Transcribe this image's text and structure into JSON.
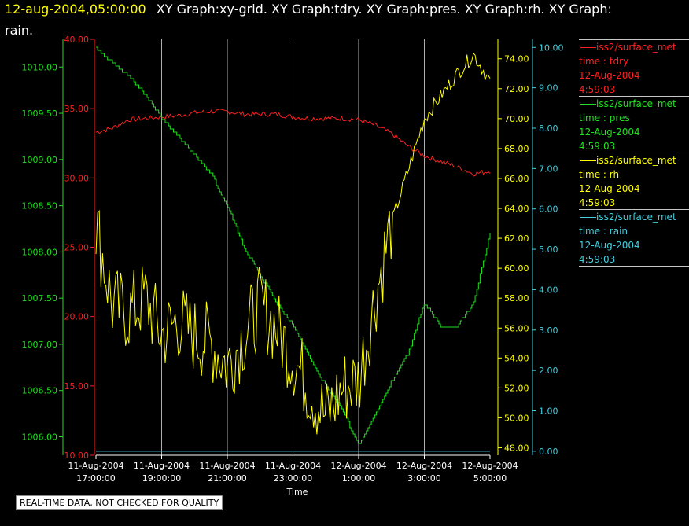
{
  "header": {
    "date": "12-aug-2004,05:00:00",
    "graphs_line1": "XY Graph:xy-grid.  XY Graph:tdry.  XY Graph:pres.  XY Graph:rh.  XY Graph:",
    "graphs_line2": "rain."
  },
  "legend": [
    {
      "source": "iss2/surface_met",
      "field": "time : tdry",
      "date": "12-Aug-2004",
      "time": "4:59:03",
      "color": "#ff2020"
    },
    {
      "source": "iss2/surface_met",
      "field": "time : pres",
      "date": "12-Aug-2004",
      "time": "4:59:03",
      "color": "#20e020"
    },
    {
      "source": "iss2/surface_met",
      "field": "time : rh",
      "date": "12-Aug-2004",
      "time": "4:59:03",
      "color": "#ffff00"
    },
    {
      "source": "iss2/surface_met",
      "field": "time : rain",
      "date": "12-Aug-2004",
      "time": "4:59:03",
      "color": "#40d0e0"
    }
  ],
  "quality_note": "REAL-TIME DATA, NOT CHECKED FOR QUALITY",
  "chart_data": {
    "type": "line",
    "xlabel": "Time",
    "x_range_hours": [
      17,
      29
    ],
    "x_ticks": [
      {
        "date": "11-Aug-2004",
        "time": "17:00:00",
        "h": 17
      },
      {
        "date": "11-Aug-2004",
        "time": "19:00:00",
        "h": 19
      },
      {
        "date": "11-Aug-2004",
        "time": "21:00:00",
        "h": 21
      },
      {
        "date": "11-Aug-2004",
        "time": "23:00:00",
        "h": 23
      },
      {
        "date": "12-Aug-2004",
        "time": "1:00:00",
        "h": 25
      },
      {
        "date": "12-Aug-2004",
        "time": "3:00:00",
        "h": 27
      },
      {
        "date": "12-Aug-2004",
        "time": "5:00:00",
        "h": 29
      }
    ],
    "grid": true,
    "axes": {
      "tdry": {
        "color": "#ff2020",
        "range": [
          10,
          40
        ],
        "ticks": [
          "10.00",
          "15.00",
          "20.00",
          "25.00",
          "30.00",
          "35.00",
          "40.00"
        ],
        "side": "left"
      },
      "pres": {
        "color": "#20e020",
        "range": [
          1005.8,
          1010.3
        ],
        "ticks": [
          "1006.00",
          "1006.50",
          "1007.00",
          "1007.50",
          "1008.00",
          "1008.50",
          "1009.00",
          "1009.50",
          "1010.00"
        ],
        "side": "left"
      },
      "rh": {
        "color": "#ffff00",
        "range": [
          47.5,
          75.3
        ],
        "ticks": [
          "48.00",
          "50.00",
          "52.00",
          "54.00",
          "56.00",
          "58.00",
          "60.00",
          "62.00",
          "64.00",
          "66.00",
          "68.00",
          "70.00",
          "72.00",
          "74.00"
        ],
        "side": "right"
      },
      "rain": {
        "color": "#40d0e0",
        "range": [
          -0.1,
          10.2
        ],
        "ticks": [
          "0.00",
          "1.00",
          "2.00",
          "3.00",
          "4.00",
          "5.00",
          "6.00",
          "7.00",
          "8.00",
          "9.00",
          "10.00"
        ],
        "side": "right"
      }
    },
    "series": [
      {
        "name": "tdry",
        "axis": "tdry",
        "x": [
          17,
          17.5,
          18,
          18.5,
          19,
          19.5,
          20,
          20.5,
          21,
          21.5,
          22,
          22.5,
          23,
          23.5,
          24,
          24.5,
          25,
          25.5,
          26,
          26.5,
          27,
          27.5,
          28,
          28.5,
          29
        ],
        "y": [
          33.3,
          33.6,
          34.2,
          34.3,
          34.4,
          34.5,
          34.7,
          34.8,
          34.8,
          34.6,
          34.6,
          34.6,
          34.4,
          34.3,
          34.3,
          34.3,
          34.2,
          33.8,
          33.2,
          32.3,
          31.6,
          31.2,
          30.8,
          30.3,
          30.5
        ]
      },
      {
        "name": "pres",
        "axis": "pres",
        "x": [
          17,
          17.5,
          18,
          18.5,
          19,
          19.5,
          20,
          20.5,
          21,
          21.5,
          22,
          22.5,
          23,
          23.5,
          24,
          24.5,
          25,
          25.5,
          26,
          26.5,
          27,
          27.5,
          28,
          28.5,
          29
        ],
        "y": [
          1010.2,
          1010.05,
          1009.9,
          1009.7,
          1009.45,
          1009.25,
          1009.05,
          1008.85,
          1008.5,
          1008.05,
          1007.75,
          1007.45,
          1007.2,
          1006.85,
          1006.55,
          1006.3,
          1005.9,
          1006.25,
          1006.6,
          1006.9,
          1007.45,
          1007.2,
          1007.2,
          1007.45,
          1008.2
        ]
      },
      {
        "name": "rh",
        "axis": "rh",
        "x": [
          17,
          17.5,
          18,
          18.5,
          19,
          19.5,
          20,
          20.5,
          21,
          21.5,
          22,
          22.5,
          23,
          23.5,
          24,
          24.5,
          25,
          25.5,
          26,
          26.5,
          27,
          27.5,
          28,
          28.5,
          29
        ],
        "y": [
          63.0,
          57.5,
          57.0,
          58.0,
          55.5,
          56.5,
          55.5,
          55.0,
          53.5,
          55.5,
          57.5,
          56.0,
          54.0,
          52.0,
          50.0,
          52.0,
          52.5,
          58.0,
          63.0,
          66.5,
          70.0,
          71.5,
          73.0,
          74.3,
          72.5
        ]
      },
      {
        "name": "rain",
        "axis": "rain",
        "x": [
          17,
          29
        ],
        "y": [
          0.0,
          0.0
        ]
      }
    ]
  }
}
